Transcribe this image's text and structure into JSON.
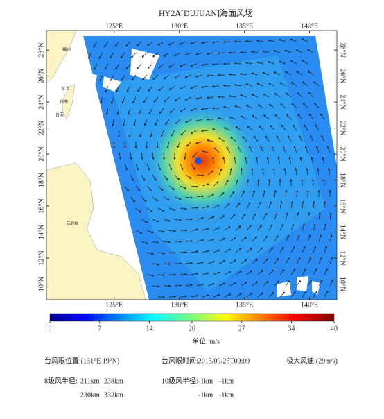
{
  "title": "HY2A[DUJUAN]海面风场",
  "map": {
    "xlim": [
      119.8,
      142.1
    ],
    "ylim": [
      8.8,
      29.5
    ],
    "xticks": [
      {
        "value": 125,
        "label": "125°E"
      },
      {
        "value": 130,
        "label": "130°E"
      },
      {
        "value": 135,
        "label": "135°E"
      },
      {
        "value": 140,
        "label": "140°E"
      }
    ],
    "yticks": [
      {
        "value": 10,
        "label": "10°N"
      },
      {
        "value": 12,
        "label": "12°N"
      },
      {
        "value": 14,
        "label": "14°N"
      },
      {
        "value": 16,
        "label": "16°N"
      },
      {
        "value": 18,
        "label": "18°N"
      },
      {
        "value": 20,
        "label": "20°N"
      },
      {
        "value": 22,
        "label": "22°N"
      },
      {
        "value": 24,
        "label": "24°N"
      },
      {
        "value": 26,
        "label": "26°N"
      },
      {
        "value": 28,
        "label": "28°N"
      }
    ],
    "places": [
      "福州",
      "台北",
      "台中",
      "台南",
      "马尼拉"
    ]
  },
  "colorbar": {
    "lim": [
      0,
      40
    ],
    "ticks": [
      0,
      7,
      14,
      20,
      27,
      34,
      40
    ]
  },
  "unit": "单位:  m/s",
  "info": {
    "eye_position": "台风眼位置:(131°E  19°N)",
    "eye_time": "台风眼时间:2015/09/25T09:09",
    "max_wind": "极大风速:(29m/s)",
    "r8_label": "8级风半径:",
    "r8": [
      [
        "211km",
        "238km"
      ],
      [
        "230km",
        "332km"
      ]
    ],
    "r10_label": "10级风半径:",
    "r10": [
      [
        "-1km",
        "-1km"
      ],
      [
        "-1km",
        "-1km"
      ]
    ]
  }
}
